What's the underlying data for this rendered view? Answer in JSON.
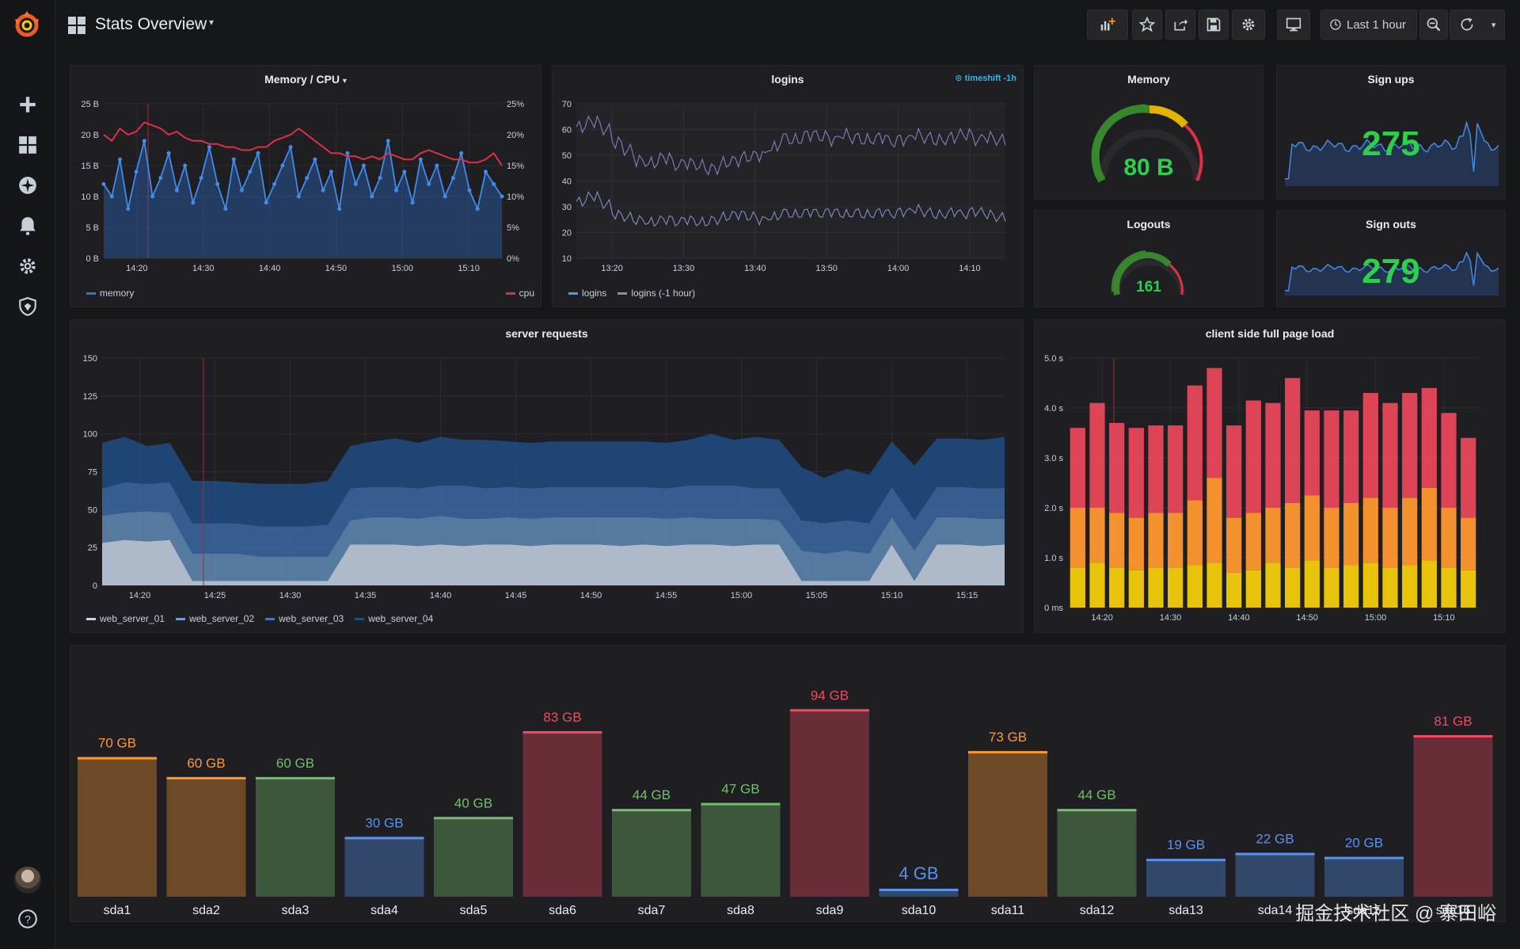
{
  "dashboard": {
    "title": "Stats Overview"
  },
  "toolbar": {
    "time_range": "Last 1 hour"
  },
  "panels": {
    "memcpu": {
      "title": "Memory / CPU",
      "legend_left": "memory",
      "legend_right": "cpu"
    },
    "logins": {
      "title": "logins",
      "tag": "timeshift -1h",
      "legend": [
        "logins",
        "logins (-1 hour)"
      ]
    },
    "memory": {
      "title": "Memory",
      "value": "80 B"
    },
    "signups": {
      "title": "Sign ups",
      "value": "275"
    },
    "logouts": {
      "title": "Logouts",
      "value": "161"
    },
    "signouts": {
      "title": "Sign outs",
      "value": "279"
    },
    "requests": {
      "title": "server requests",
      "legend": [
        "web_server_01",
        "web_server_02",
        "web_server_03",
        "web_server_04"
      ]
    },
    "pageload": {
      "title": "client side full page load"
    }
  },
  "colors": {
    "green": "#2bd14a",
    "blue": "#3274d9",
    "red": "#e02f44",
    "orange": "#ff7f3b",
    "yellow": "#f2cc0c"
  },
  "chart_data": [
    {
      "type": "line",
      "name": "memcpu",
      "title": "Memory / CPU",
      "x_ticks": [
        "14:20",
        "14:30",
        "14:40",
        "14:50",
        "15:00",
        "15:10"
      ],
      "y_left_ticks": [
        "0 B",
        "5 B",
        "10 B",
        "15 B",
        "20 B",
        "25 B"
      ],
      "y_right_ticks": [
        "0%",
        "5%",
        "10%",
        "15%",
        "20%",
        "25%"
      ],
      "ylim": [
        0,
        25
      ],
      "series": [
        {
          "name": "memory",
          "axis": "left",
          "values": [
            12,
            10,
            16,
            8,
            14,
            19,
            10,
            13,
            17,
            11,
            15,
            9,
            13,
            18,
            12,
            8,
            16,
            11,
            14,
            17,
            9,
            12,
            15,
            18,
            10,
            13,
            16,
            11,
            14,
            8,
            17,
            12,
            15,
            10,
            13,
            19,
            11,
            14,
            9,
            16,
            12,
            15,
            10,
            13,
            17,
            11,
            8,
            14,
            12,
            10
          ]
        },
        {
          "name": "cpu",
          "axis": "right",
          "values": [
            20,
            19,
            21,
            20,
            20.5,
            22,
            21.5,
            21,
            20,
            20.5,
            19.5,
            19,
            19,
            18.5,
            18.5,
            18,
            18,
            17.5,
            17.5,
            18,
            18,
            19,
            19.5,
            20,
            21,
            20,
            19,
            18,
            17,
            17,
            16.5,
            16.5,
            16,
            16.5,
            16,
            17,
            16.5,
            16,
            16,
            17,
            17.5,
            17,
            16.5,
            16,
            16,
            15.5,
            15.5,
            16,
            17,
            15
          ]
        }
      ]
    },
    {
      "type": "line",
      "name": "logins",
      "title": "logins",
      "x_ticks": [
        "13:20",
        "13:30",
        "13:40",
        "13:50",
        "14:00",
        "14:10"
      ],
      "y_ticks": [
        "10",
        "20",
        "30",
        "40",
        "50",
        "60",
        "70"
      ],
      "ylim": [
        10,
        70
      ],
      "series": [
        {
          "name": "logins",
          "values": [
            61,
            63,
            60,
            55,
            52,
            48,
            47,
            49,
            46,
            47,
            46,
            45,
            47,
            48,
            49,
            50,
            53,
            57,
            56,
            58,
            57,
            56,
            58,
            57,
            56,
            57,
            55,
            56,
            58,
            57,
            56,
            57,
            58,
            56,
            57,
            56
          ]
        },
        {
          "name": "logins (-1 hour)",
          "values": [
            32,
            34,
            31,
            27,
            26,
            25,
            24,
            25,
            24,
            25,
            24,
            25,
            26,
            27,
            26,
            25,
            26,
            28,
            27,
            28,
            27,
            28,
            27,
            28,
            27,
            28,
            27,
            28,
            29,
            28,
            27,
            28,
            27,
            28,
            27,
            26
          ]
        }
      ]
    },
    {
      "type": "area",
      "name": "requests",
      "title": "server requests",
      "x_ticks": [
        "14:20",
        "14:25",
        "14:30",
        "14:35",
        "14:40",
        "14:45",
        "14:50",
        "14:55",
        "15:00",
        "15:05",
        "15:10",
        "15:15"
      ],
      "y_ticks": [
        "0",
        "25",
        "50",
        "75",
        "100",
        "125",
        "150"
      ],
      "ylim": [
        0,
        150
      ],
      "series": [
        {
          "name": "web_server_01",
          "values": [
            28,
            30,
            29,
            30,
            3,
            3,
            3,
            3,
            3,
            3,
            3,
            27,
            27,
            27,
            26,
            27,
            26,
            27,
            27,
            26,
            27,
            27,
            27,
            26,
            27,
            26,
            27,
            27,
            26,
            27,
            27,
            3,
            3,
            3,
            3,
            27,
            3,
            27,
            27,
            26,
            27
          ]
        },
        {
          "name": "web_server_02",
          "values": [
            18,
            18,
            20,
            18,
            18,
            18,
            18,
            16,
            16,
            16,
            16,
            16,
            18,
            18,
            18,
            19,
            18,
            17,
            18,
            18,
            18,
            18,
            18,
            19,
            18,
            18,
            18,
            17,
            18,
            17,
            16,
            20,
            18,
            20,
            18,
            18,
            20,
            18,
            18,
            18,
            17
          ]
        },
        {
          "name": "web_server_03",
          "values": [
            18,
            20,
            18,
            20,
            20,
            20,
            20,
            20,
            20,
            20,
            21,
            21,
            20,
            20,
            20,
            20,
            22,
            20,
            20,
            20,
            20,
            20,
            20,
            20,
            20,
            20,
            21,
            22,
            22,
            20,
            21,
            20,
            20,
            20,
            20,
            20,
            20,
            20,
            20,
            20,
            20
          ]
        },
        {
          "name": "web_server_04",
          "values": [
            30,
            30,
            25,
            26,
            28,
            28,
            27,
            28,
            28,
            28,
            29,
            28,
            30,
            32,
            30,
            32,
            30,
            32,
            30,
            30,
            30,
            30,
            30,
            30,
            30,
            30,
            30,
            34,
            30,
            34,
            32,
            35,
            30,
            34,
            32,
            30,
            36,
            32,
            32,
            32,
            34
          ]
        }
      ]
    },
    {
      "type": "bar",
      "name": "pageload",
      "title": "client side full page load",
      "stacked": true,
      "x_ticks": [
        "14:20",
        "14:30",
        "14:40",
        "14:50",
        "15:00",
        "15:10"
      ],
      "y_ticks": [
        "0 ms",
        "1.0 s",
        "2.0 s",
        "3.0 s",
        "4.0 s",
        "5.0 s"
      ],
      "ylim": [
        0,
        5
      ],
      "series": [
        {
          "name": "yellow",
          "values": [
            0.8,
            0.9,
            0.8,
            0.75,
            0.8,
            0.8,
            0.85,
            0.9,
            0.7,
            0.75,
            0.9,
            0.8,
            0.95,
            0.8,
            0.85,
            0.9,
            0.8,
            0.85,
            0.95,
            0.8,
            0.75
          ]
        },
        {
          "name": "orange",
          "values": [
            1.2,
            1.1,
            1.1,
            1.05,
            1.1,
            1.1,
            1.3,
            1.7,
            1.1,
            1.15,
            1.1,
            1.3,
            1.3,
            1.2,
            1.25,
            1.3,
            1.2,
            1.35,
            1.45,
            1.2,
            1.05
          ]
        },
        {
          "name": "red",
          "values": [
            1.6,
            2.1,
            1.8,
            1.8,
            1.75,
            1.75,
            2.3,
            2.2,
            1.85,
            2.25,
            2.1,
            2.5,
            1.7,
            1.95,
            1.85,
            2.1,
            2.1,
            2.1,
            2.0,
            1.9,
            1.6
          ]
        }
      ]
    },
    {
      "type": "bar",
      "name": "disks",
      "categories": [
        "sda1",
        "sda2",
        "sda3",
        "sda4",
        "sda5",
        "sda6",
        "sda7",
        "sda8",
        "sda9",
        "sda10",
        "sda11",
        "sda12",
        "sda13",
        "sda14",
        "sda15",
        "sda16"
      ],
      "values": [
        70,
        60,
        60,
        30,
        40,
        83,
        44,
        47,
        94,
        4,
        73,
        44,
        19,
        22,
        20,
        81
      ],
      "labels": [
        "70 GB",
        "60 GB",
        "60 GB",
        "30 GB",
        "40 GB",
        "83 GB",
        "44 GB",
        "47 GB",
        "94 GB",
        "4 GB",
        "73 GB",
        "44 GB",
        "19 GB",
        "22 GB",
        "20 GB",
        "81 GB"
      ],
      "label_colors": [
        "#ff9830",
        "#ff9830",
        "#73bf69",
        "#5794f2",
        "#73bf69",
        "#f2495c",
        "#73bf69",
        "#73bf69",
        "#f2495c",
        "#5794f2",
        "#ff9830",
        "#73bf69",
        "#5794f2",
        "#5794f2",
        "#5794f2",
        "#f2495c"
      ]
    }
  ],
  "watermark": "掘金技术社区 @ 寨田峪"
}
